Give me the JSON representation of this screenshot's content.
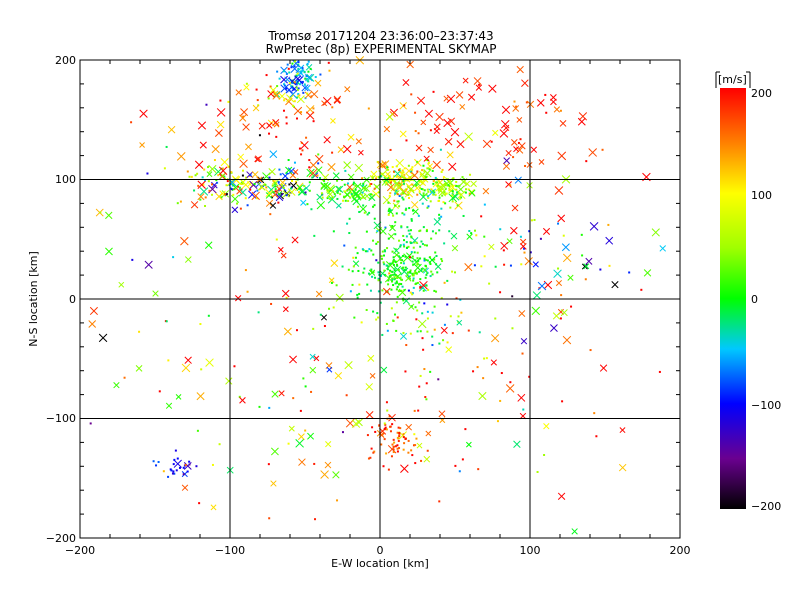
{
  "chart_data": {
    "type": "scatter",
    "title": "Tromsø 20171204 23:36:00–23:37:43",
    "subtitle": "RwPretec (8p) EXPERIMENTAL SKYMAP",
    "xlabel": "E-W location [km]",
    "ylabel": "N-S location [km]",
    "xlim": [
      -200,
      200
    ],
    "ylim": [
      -200,
      200
    ],
    "xticks": [
      -200,
      -100,
      0,
      100,
      200
    ],
    "yticks": [
      -200,
      -100,
      0,
      100,
      200
    ],
    "xtick_labels": [
      "−200",
      "−100",
      "0",
      "100",
      "200"
    ],
    "ytick_labels": [
      "200",
      "100",
      "0",
      "−100",
      "−200"
    ],
    "grid": true,
    "colorbar": {
      "label": "[m/s]",
      "range": [
        -200,
        200
      ],
      "ticks": [
        "200",
        "100",
        "0",
        "−100",
        "−200"
      ],
      "colormap": "rainbow"
    },
    "markers": {
      "small": "dot",
      "large": "x"
    },
    "clusters": [
      {
        "cx": -55,
        "cy": 185,
        "sx": 6,
        "sy": 8,
        "n": 80,
        "vmean": -60,
        "vsd": 30,
        "xfrac": 0.3
      },
      {
        "cx": -60,
        "cy": 170,
        "sx": 14,
        "sy": 10,
        "n": 35,
        "vmean": 120,
        "vsd": 60,
        "xfrac": 0.3
      },
      {
        "cx": -105,
        "cy": 95,
        "sx": 15,
        "sy": 8,
        "n": 80,
        "vmean": 60,
        "vsd": 80,
        "xfrac": 0.3
      },
      {
        "cx": -65,
        "cy": 95,
        "sx": 14,
        "sy": 8,
        "n": 90,
        "vmean": -10,
        "vsd": 120,
        "xfrac": 0.4
      },
      {
        "cx": -25,
        "cy": 90,
        "sx": 12,
        "sy": 7,
        "n": 80,
        "vmean": 20,
        "vsd": 30,
        "xfrac": 0.4
      },
      {
        "cx": 15,
        "cy": 100,
        "sx": 12,
        "sy": 8,
        "n": 130,
        "vmean": 90,
        "vsd": 40,
        "xfrac": 0.3
      },
      {
        "cx": 45,
        "cy": 92,
        "sx": 10,
        "sy": 6,
        "n": 80,
        "vmean": 50,
        "vsd": 30,
        "xfrac": 0.3
      },
      {
        "cx": 20,
        "cy": 60,
        "sx": 18,
        "sy": 25,
        "n": 180,
        "vmean": 0,
        "vsd": 30,
        "xfrac": 0.1
      },
      {
        "cx": 10,
        "cy": 25,
        "sx": 14,
        "sy": 10,
        "n": 180,
        "vmean": 5,
        "vsd": 20,
        "xfrac": 0.1
      },
      {
        "cx": 20,
        "cy": -10,
        "sx": 20,
        "sy": 15,
        "n": 60,
        "vmean": 30,
        "vsd": 70,
        "xfrac": 0.1
      },
      {
        "cx": 10,
        "cy": -115,
        "sx": 10,
        "sy": 12,
        "n": 70,
        "vmean": 170,
        "vsd": 25,
        "xfrac": 0.2
      },
      {
        "cx": -135,
        "cy": -140,
        "sx": 6,
        "sy": 5,
        "n": 25,
        "vmean": -110,
        "vsd": 20,
        "xfrac": 0.2
      },
      {
        "cx": -80,
        "cy": 140,
        "sx": 35,
        "sy": 25,
        "n": 70,
        "vmean": 160,
        "vsd": 50,
        "xfrac": 0.6
      },
      {
        "cx": 60,
        "cy": 145,
        "sx": 45,
        "sy": 30,
        "n": 100,
        "vmean": 180,
        "vsd": 30,
        "xfrac": 0.8
      },
      {
        "cx": 115,
        "cy": 40,
        "sx": 30,
        "sy": 25,
        "n": 55,
        "vmean": 40,
        "vsd": 130,
        "xfrac": 0.5
      },
      {
        "cx": 80,
        "cy": -40,
        "sx": 45,
        "sy": 50,
        "n": 70,
        "vmean": 150,
        "vsd": 90,
        "xfrac": 0.4
      },
      {
        "cx": -60,
        "cy": -60,
        "sx": 55,
        "sy": 70,
        "n": 90,
        "vmean": 120,
        "vsd": 110,
        "xfrac": 0.4
      },
      {
        "cx": 0,
        "cy": 0,
        "sx": 120,
        "sy": 120,
        "n": 100,
        "vmean": 60,
        "vsd": 130,
        "xfrac": 0.5
      }
    ]
  }
}
